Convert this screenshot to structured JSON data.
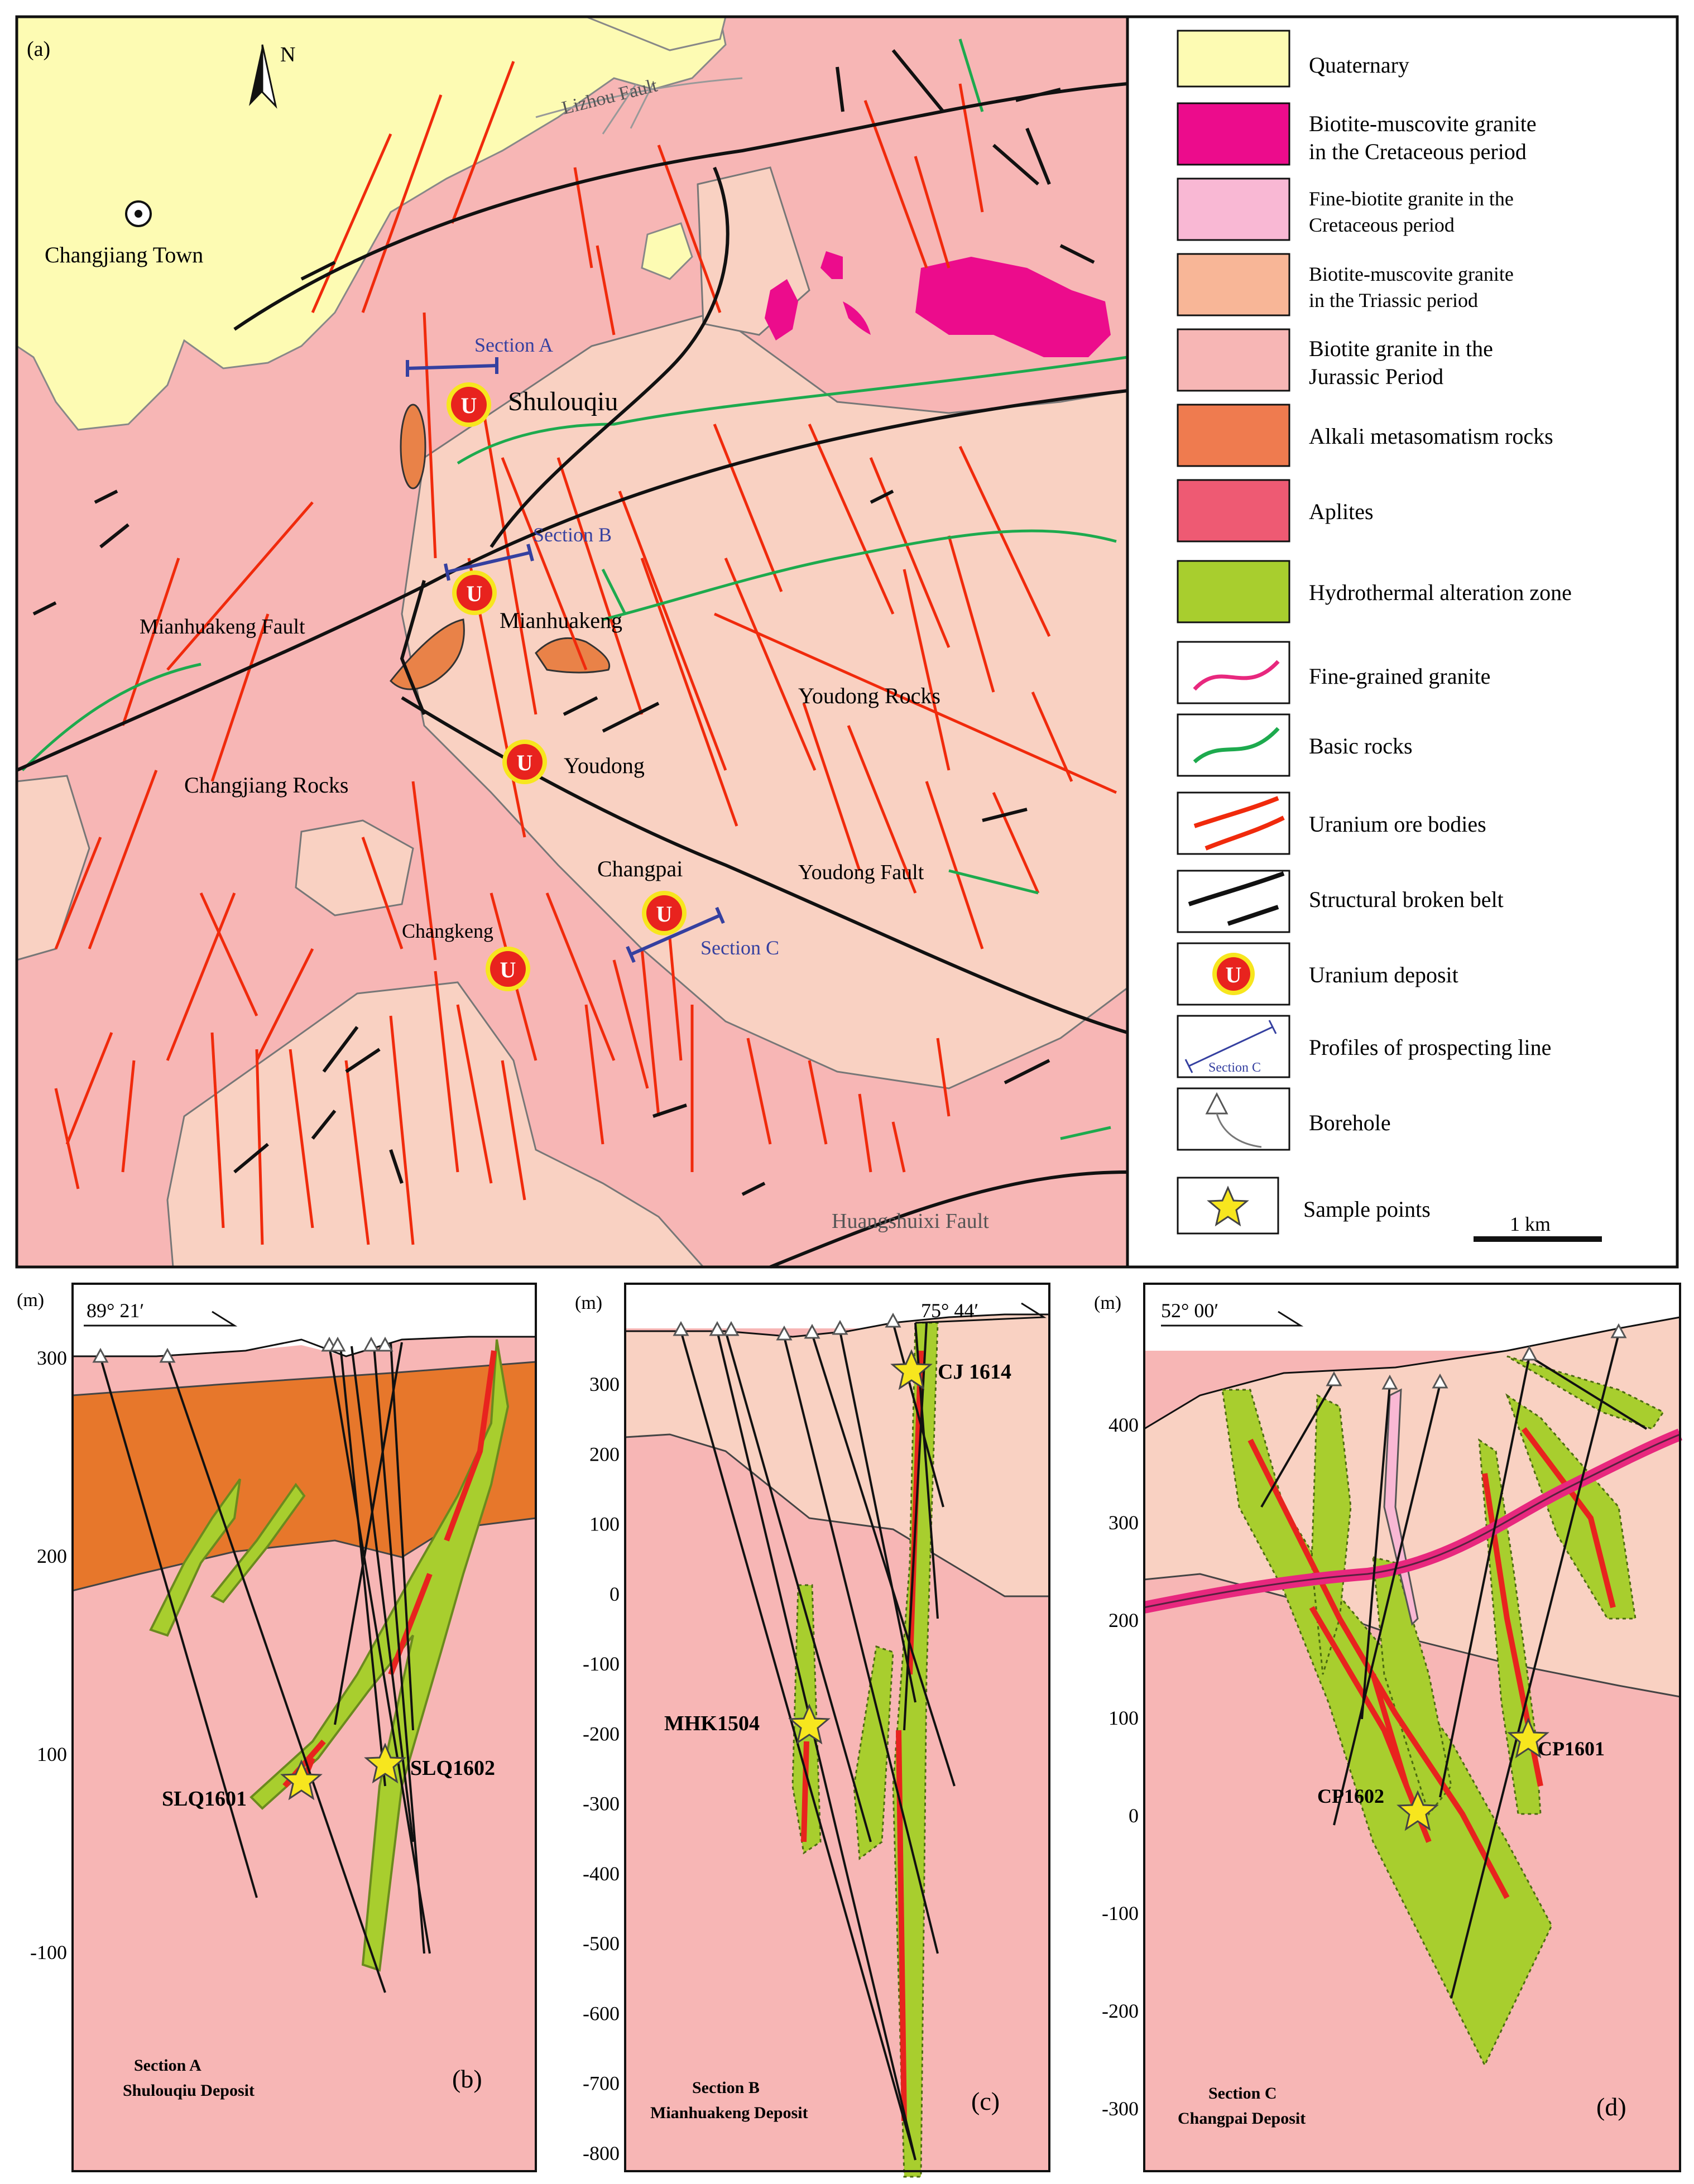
{
  "map": {
    "panel_label": "(a)",
    "north": "N",
    "places": {
      "changjiang_town": "Changjiang Town",
      "shulouqiu": "Shulouqiu",
      "mianhuakeng": "Mianhuakeng",
      "youdong": "Youdong",
      "changpai": "Changpai",
      "changkeng": "Changkeng"
    },
    "rocks": {
      "changjiang": "Changjiang Rocks",
      "youdong": "Youdong Rocks"
    },
    "faults": {
      "lizhou": "Lizhou Fault",
      "mianhuakeng": "Mianhuakeng Fault",
      "youdong": "Youdong Fault",
      "huangshuixi": "Huangshuixi Fault"
    },
    "sections": {
      "a": "Section A",
      "b": "Section B",
      "c": "Section C"
    },
    "deposit_symbol": "U",
    "scale": "1 km"
  },
  "legend": {
    "items": [
      {
        "line1": "Quaternary",
        "line2": "",
        "color": "#FDFBB3"
      },
      {
        "line1": "Biotite-muscovite granite",
        "line2": "in the Cretaceous period",
        "color": "#EC0C8C"
      },
      {
        "line1": "Fine-biotite granite in the",
        "line2": "Cretaceous period",
        "color": "#F9B8D4"
      },
      {
        "line1": "Biotite-muscovite granite",
        "line2": "in the Triassic period",
        "color": "#F8B697"
      },
      {
        "line1": "Biotite granite in the",
        "line2": "Jurassic Period",
        "color": "#F7B6B5"
      },
      {
        "line1": "Alkali metasomatism rocks",
        "line2": "",
        "color": "#EF7B4F"
      },
      {
        "line1": "Aplites",
        "line2": "",
        "color": "#EE5A73"
      },
      {
        "line1": "Hydrothermal alteration zone",
        "line2": "",
        "color": "#A8CE2E"
      },
      {
        "line1": "Fine-grained granite",
        "line2": "",
        "color": "#E8287E"
      },
      {
        "line1": "Basic rocks",
        "line2": "",
        "color": "#1DAA4E"
      },
      {
        "line1": "Uranium ore bodies",
        "line2": "",
        "color": "#F02A0C"
      },
      {
        "line1": "Structural broken belt",
        "line2": "",
        "color": "#111111"
      },
      {
        "line1": "Uranium deposit",
        "line2": "",
        "color": "#E8231E"
      },
      {
        "line1": "Profiles of prospecting line",
        "line2": "",
        "color": "#3540A0"
      },
      {
        "line1": "Borehole",
        "line2": "",
        "color": "#777777"
      },
      {
        "line1": "Sample points",
        "line2": "",
        "color": "#F7E61E"
      }
    ],
    "section_c_swatch": "Section C"
  },
  "section_b_panel": {
    "unit": "(m)",
    "azimuth": "89° 21′",
    "ticks": [
      "300",
      "200",
      "100",
      "-100"
    ],
    "samples": [
      "SLQ1601",
      "SLQ1602"
    ],
    "caption_line1": "Section A",
    "caption_line2": "Shulouqiu Deposit",
    "label": "(b)"
  },
  "section_c_panel": {
    "unit": "(m)",
    "azimuth": "75° 44′",
    "ticks": [
      "300",
      "200",
      "100",
      "0",
      "-100",
      "-200",
      "-300",
      "-400",
      "-500",
      "-600",
      "-700",
      "-800"
    ],
    "samples": [
      "CJ 1614",
      "MHK1504"
    ],
    "caption_line1": "Section B",
    "caption_line2": "Mianhuakeng Deposit",
    "label": "(c)"
  },
  "section_d_panel": {
    "unit": "(m)",
    "azimuth": "52° 00′",
    "ticks": [
      "400",
      "300",
      "200",
      "100",
      "0",
      "-100",
      "-200",
      "-300"
    ],
    "samples": [
      "CP1601",
      "CP1602"
    ],
    "caption_line1": "Section C",
    "caption_line2": "Changpai Deposit",
    "label": "(d)"
  }
}
